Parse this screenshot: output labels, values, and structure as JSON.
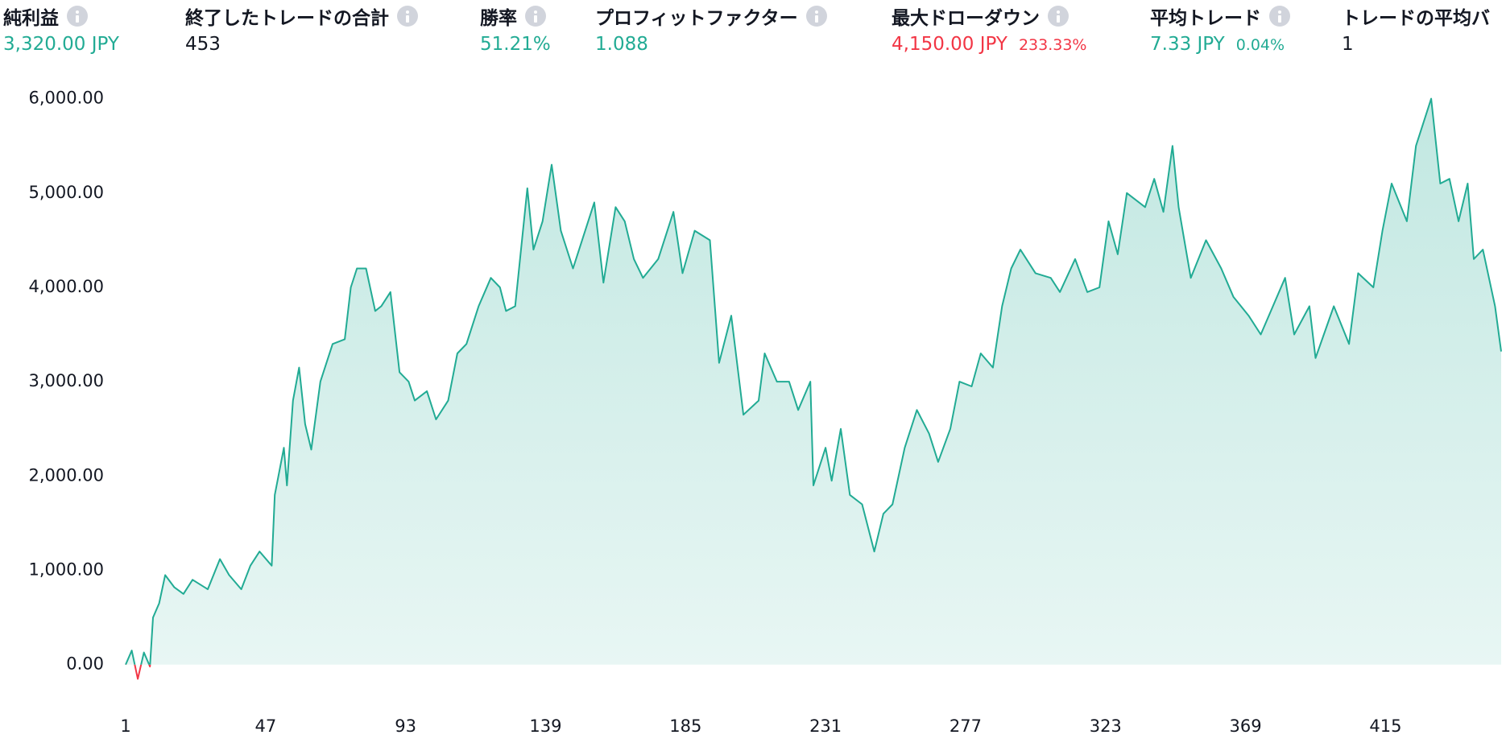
{
  "stats": [
    {
      "label": "純利益",
      "value": "3,320.00 JPY",
      "color": "#22ab94"
    },
    {
      "label": "終了したトレードの合計",
      "value": "453",
      "color": "#131722"
    },
    {
      "label": "勝率",
      "value": "51.21%",
      "color": "#22ab94"
    },
    {
      "label": "プロフィットファクター",
      "value": "1.088",
      "color": "#22ab94"
    },
    {
      "label": "最大ドローダウン",
      "value": "4,150.00 JPY",
      "sub": "233.33%",
      "color": "#f23645"
    },
    {
      "label": "平均トレード",
      "value": "7.33 JPY",
      "sub": "0.04%",
      "color": "#22ab94"
    },
    {
      "label": "トレードの平均バ",
      "value": "1",
      "color": "#131722"
    }
  ],
  "chart_data": {
    "type": "area",
    "color": "#22ab94",
    "negative_color": "#f23645",
    "x": [
      1,
      3,
      5,
      7,
      9,
      10,
      12,
      14,
      17,
      20,
      23,
      28,
      32,
      35,
      39,
      42,
      45,
      49,
      50,
      53,
      54,
      56,
      58,
      60,
      62,
      65,
      69,
      73,
      75,
      77,
      80,
      83,
      85,
      88,
      91,
      94,
      96,
      100,
      103,
      107,
      110,
      113,
      117,
      121,
      124,
      126,
      129,
      133,
      135,
      138,
      141,
      144,
      148,
      151,
      155,
      158,
      162,
      165,
      168,
      171,
      176,
      181,
      184,
      188,
      193,
      196,
      200,
      204,
      209,
      211,
      215,
      219,
      222,
      226,
      227,
      231,
      233,
      236,
      239,
      243,
      247,
      250,
      253,
      257,
      261,
      265,
      268,
      272,
      275,
      279,
      282,
      286,
      289,
      292,
      295,
      300,
      305,
      308,
      313,
      317,
      321,
      324,
      327,
      330,
      336,
      339,
      342,
      345,
      347,
      351,
      356,
      361,
      365,
      370,
      374,
      378,
      382,
      385,
      390,
      392,
      398,
      403,
      406,
      411,
      414,
      417,
      422,
      425,
      430,
      433,
      436,
      439,
      442,
      444,
      447,
      451,
      453
    ],
    "values": [
      0,
      150,
      -150,
      130,
      -20,
      500,
      650,
      950,
      820,
      750,
      900,
      800,
      1120,
      950,
      800,
      1050,
      1200,
      1050,
      1800,
      2300,
      1900,
      2800,
      3150,
      2550,
      2280,
      3000,
      3400,
      3450,
      4000,
      4200,
      4200,
      3750,
      3800,
      3950,
      3100,
      3000,
      2800,
      2900,
      2600,
      2800,
      3300,
      3400,
      3800,
      4100,
      4000,
      3750,
      3800,
      5050,
      4400,
      4700,
      5300,
      4600,
      4200,
      4500,
      4900,
      4050,
      4850,
      4700,
      4300,
      4100,
      4300,
      4800,
      4150,
      4600,
      4500,
      3200,
      3700,
      2650,
      2800,
      3300,
      3000,
      3000,
      2700,
      3000,
      1900,
      2300,
      1950,
      2500,
      1800,
      1700,
      1200,
      1600,
      1700,
      2300,
      2700,
      2450,
      2150,
      2500,
      3000,
      2950,
      3300,
      3150,
      3800,
      4200,
      4400,
      4150,
      4100,
      3950,
      4300,
      3950,
      4000,
      4700,
      4350,
      5000,
      4850,
      5150,
      4800,
      5500,
      4850,
      4100,
      4500,
      4200,
      3900,
      3700,
      3500,
      3800,
      4100,
      3500,
      3800,
      3250,
      3800,
      3400,
      4150,
      4000,
      4600,
      5100,
      4700,
      5500,
      6000,
      5100,
      5150,
      4700,
      5100,
      4300,
      4400,
      3800,
      3320
    ],
    "xlim": [
      1,
      453
    ],
    "xticks": [
      1,
      47,
      93,
      139,
      185,
      231,
      277,
      323,
      369,
      415
    ],
    "ylim": [
      -250,
      6150
    ],
    "yticks": [
      {
        "value": 0,
        "label": "0.00"
      },
      {
        "value": 1000,
        "label": "1,000.00"
      },
      {
        "value": 2000,
        "label": "2,000.00"
      },
      {
        "value": 3000,
        "label": "3,000.00"
      },
      {
        "value": 4000,
        "label": "4,000.00"
      },
      {
        "value": 5000,
        "label": "5,000.00"
      },
      {
        "value": 6000,
        "label": "6,000.00"
      }
    ]
  }
}
